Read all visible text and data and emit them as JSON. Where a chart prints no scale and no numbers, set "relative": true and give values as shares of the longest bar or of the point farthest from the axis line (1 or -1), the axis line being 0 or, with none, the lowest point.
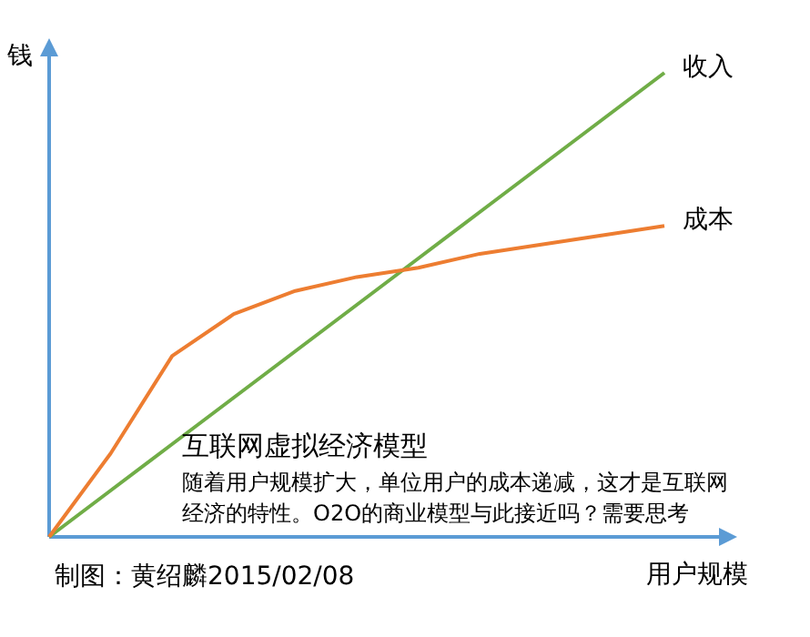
{
  "chart_data": {
    "type": "line",
    "relative": true,
    "title": "互联网虚拟经济模型",
    "subtitle": "随着用户规模扩大，单位用户的成本递减，这才是互联网经济的特性。O2O的商业模型与此接近吗？需要思考",
    "xlabel": "用户规模",
    "ylabel": "钱",
    "annotations": [
      "制图：黄绍麟2015/02/08"
    ],
    "categories": [
      null,
      null,
      null,
      null,
      null,
      null,
      null,
      null,
      null,
      null,
      null
    ],
    "series": [
      {
        "name": "收入",
        "color": "#70ad47",
        "values": [
          0,
          0.1,
          0.2,
          0.3,
          0.4,
          0.5,
          0.6,
          0.7,
          0.8,
          0.9,
          1
        ]
      },
      {
        "name": "成本",
        "color": "#ed7d31",
        "values": [
          0,
          0.18,
          0.39,
          0.48,
          0.53,
          0.56,
          0.58,
          0.61,
          0.63,
          0.65,
          0.67
        ]
      }
    ]
  }
}
